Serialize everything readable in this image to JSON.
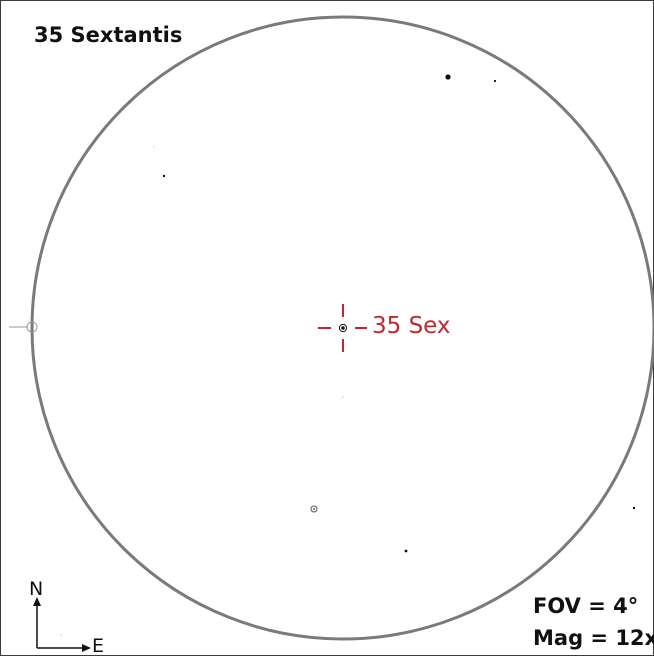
{
  "title": "35 Sextantis",
  "target": {
    "label": "35 Sex",
    "color": "#c0282d"
  },
  "fov": {
    "label": "FOV = 4°",
    "value_degrees": 4
  },
  "magnification": {
    "label": "Mag = 12x",
    "value": 12
  },
  "compass": {
    "north": "N",
    "east": "E"
  },
  "colors": {
    "field_circle": "#7a7a7a",
    "stars": "#111111",
    "target_marker": "#c0282d",
    "frame": "#3a3a3a"
  },
  "icons": {
    "target_marker": "crosshair-icon",
    "compass": "compass-arrows-icon"
  }
}
